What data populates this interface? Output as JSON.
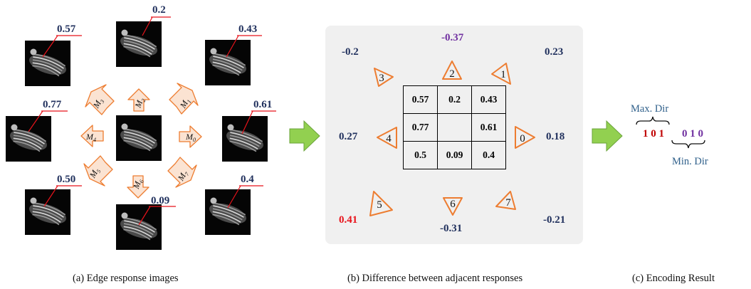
{
  "panel_a": {
    "caption": "(a) Edge response images",
    "responses": [
      {
        "id": "nw",
        "value": "0.57"
      },
      {
        "id": "n",
        "value": "0.2"
      },
      {
        "id": "ne",
        "value": "0.43"
      },
      {
        "id": "w",
        "value": "0.77"
      },
      {
        "id": "e",
        "value": "0.61"
      },
      {
        "id": "sw",
        "value": "0.50"
      },
      {
        "id": "s",
        "value": "0.09"
      },
      {
        "id": "se",
        "value": "0.4"
      }
    ],
    "mask_labels": [
      "M0",
      "M1",
      "M2",
      "M3",
      "M4",
      "M5",
      "M6",
      "M7"
    ]
  },
  "panel_b": {
    "caption": "(b) Difference between adjacent responses",
    "grid": [
      [
        "0.57",
        "0.2",
        "0.43"
      ],
      [
        "0.77",
        "",
        "0.61"
      ],
      [
        "0.5",
        "0.09",
        "0.4"
      ]
    ],
    "directions": [
      {
        "index": "0",
        "difference": "0.18"
      },
      {
        "index": "1",
        "difference": "0.23"
      },
      {
        "index": "2",
        "difference": "-0.37"
      },
      {
        "index": "3",
        "difference": "-0.2"
      },
      {
        "index": "4",
        "difference": "0.27"
      },
      {
        "index": "5",
        "difference": "0.41"
      },
      {
        "index": "6",
        "difference": "-0.31"
      },
      {
        "index": "7",
        "difference": "-0.21"
      }
    ],
    "highlight_colors": {
      "max": "#e8131b",
      "min": "#7030a0",
      "normal": "#1f2f5c"
    }
  },
  "panel_c": {
    "caption": "(c) Encoding Result",
    "max_label": "Max. Dir",
    "min_label": "Min. Dir",
    "max_code": "1 0 1",
    "min_code": "0 1 0"
  },
  "colors": {
    "arrow_fill": "#fbe3d2",
    "arrow_stroke": "#ed7d31",
    "flow_arrow": "#92d050",
    "value_text": "#1f2f5c",
    "code_max": "#c00000",
    "code_min": "#7030a0",
    "label_text": "#2e5f8a"
  }
}
